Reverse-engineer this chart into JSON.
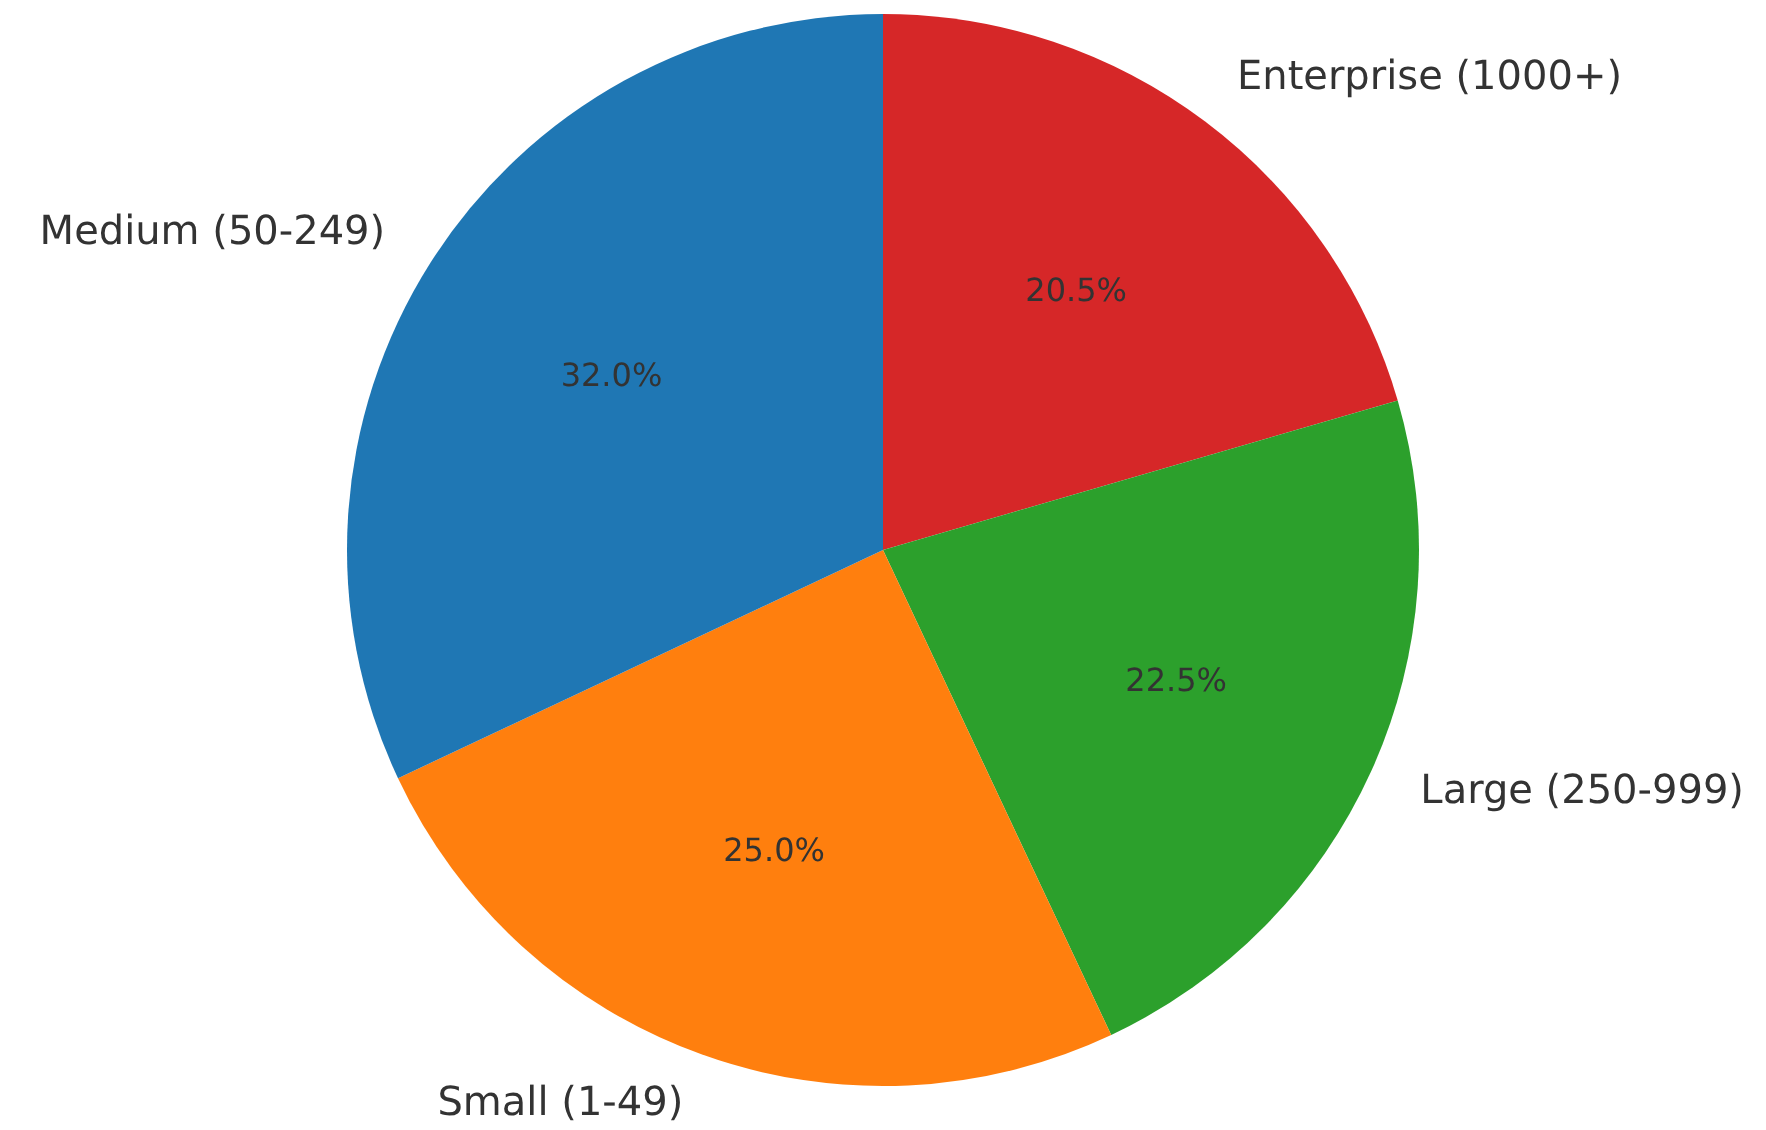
{
  "chart_data": {
    "type": "pie",
    "categories": [
      "Enterprise (1000+)",
      "Large (250-999)",
      "Small (1-49)",
      "Medium (50-249)"
    ],
    "values": [
      20.5,
      22.5,
      25.0,
      32.0
    ],
    "colors": [
      "#d62728",
      "#2ca02c",
      "#ff7f0e",
      "#1f77b4"
    ],
    "value_labels": [
      "20.5%",
      "22.5%",
      "25.0%",
      "32.0%"
    ],
    "legend": false
  }
}
